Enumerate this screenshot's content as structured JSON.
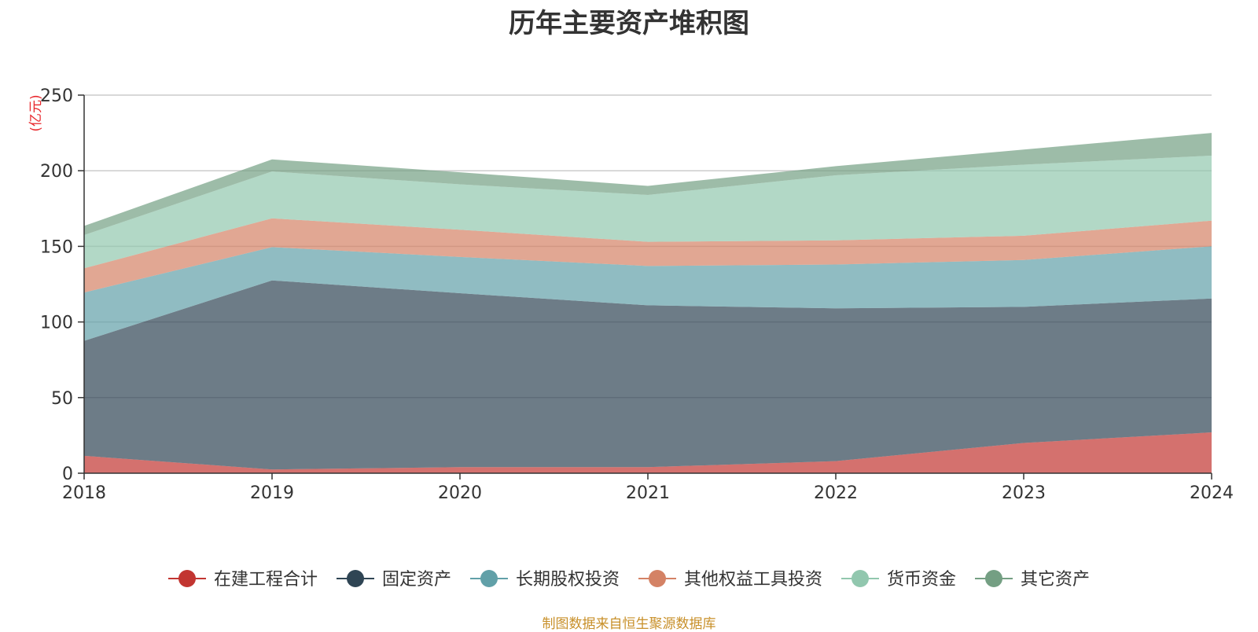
{
  "chart_data": {
    "type": "area",
    "stacked": true,
    "title": "历年主要资产堆积图",
    "unit": "(亿元)",
    "x": [
      "2018",
      "2019",
      "2020",
      "2021",
      "2022",
      "2023",
      "2024"
    ],
    "ylim": [
      0,
      250
    ],
    "yticks": [
      0,
      50,
      100,
      150,
      200,
      250
    ],
    "grid": true,
    "legend_position": "bottom",
    "series": [
      {
        "name": "在建工程合计",
        "color": "#c23531",
        "values": [
          11.5,
          2.5,
          4,
          4,
          8,
          20,
          27
        ]
      },
      {
        "name": "固定资产",
        "color": "#2f4554",
        "values": [
          76,
          125,
          115,
          107,
          101,
          90,
          88.5
        ]
      },
      {
        "name": "长期股权投资",
        "color": "#61a0a8",
        "values": [
          32,
          22,
          24,
          26,
          29,
          31,
          34.5
        ]
      },
      {
        "name": "其他权益工具投资",
        "color": "#d48265",
        "values": [
          16,
          19,
          18,
          16,
          16,
          16,
          17
        ]
      },
      {
        "name": "货币资金",
        "color": "#91c7ae",
        "values": [
          22,
          31,
          30,
          31,
          43,
          47,
          43
        ]
      },
      {
        "name": "其它资产",
        "color": "#749f83",
        "values": [
          6,
          8,
          8,
          6,
          6,
          10,
          15
        ]
      }
    ],
    "source_note": "制图数据来自恒生聚源数据库"
  }
}
